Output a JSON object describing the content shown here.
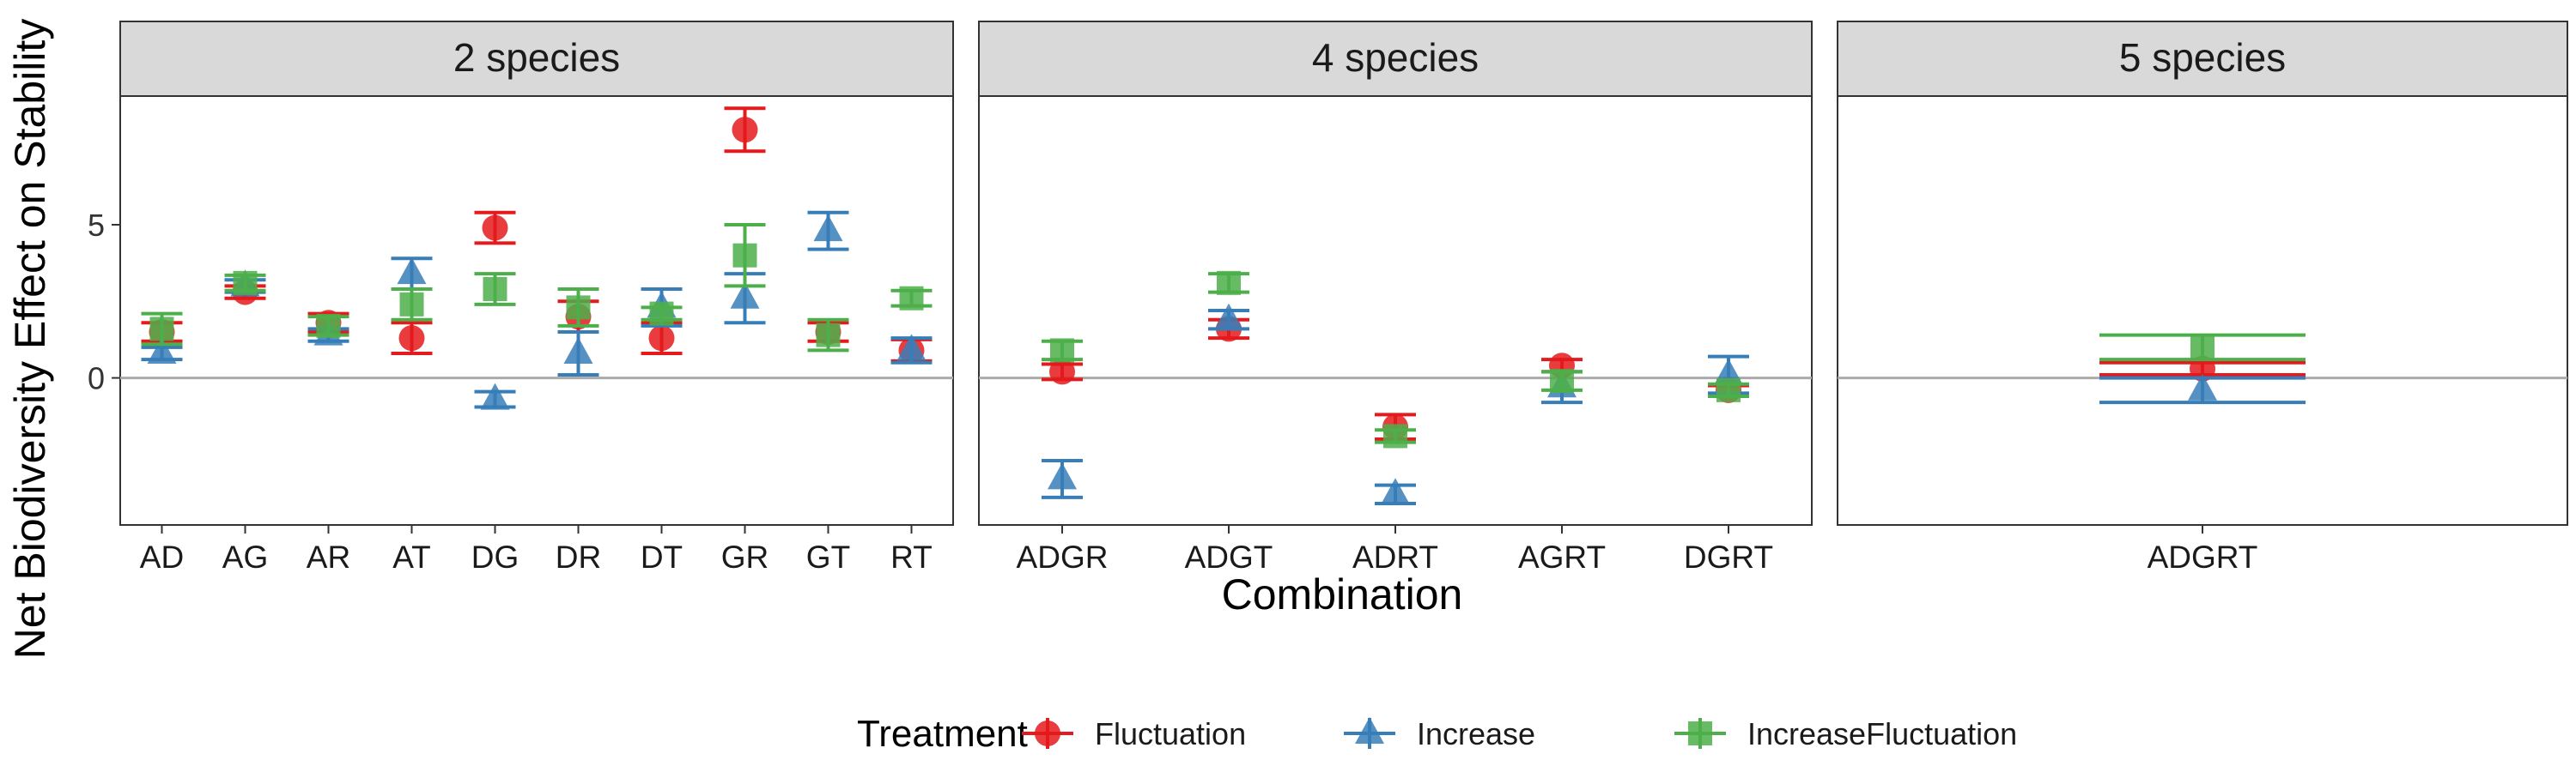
{
  "chart_data": {
    "type": "scatter",
    "ylabel": "Net Biodiversity Effect on Stability",
    "xlabel": "Combination",
    "y_ticks": [
      0,
      5
    ],
    "ylim": [
      -4.8,
      9.2
    ],
    "zero_line": true,
    "legend": {
      "title": "Treatment",
      "position": "bottom",
      "entries": [
        {
          "name": "Fluctuation",
          "color": "#E41A1C",
          "shape": "circle"
        },
        {
          "name": "Increase",
          "color": "#377EB8",
          "shape": "triangle"
        },
        {
          "name": "IncreaseFluctuation",
          "color": "#4DAF4A",
          "shape": "square"
        }
      ]
    },
    "panels": [
      {
        "title": "2 species",
        "categories": [
          "AD",
          "AG",
          "AR",
          "AT",
          "DG",
          "DR",
          "DT",
          "GR",
          "GT",
          "RT"
        ],
        "series": [
          {
            "name": "Fluctuation",
            "values": [
              1.5,
              2.8,
              1.8,
              1.3,
              4.9,
              2.0,
              1.3,
              8.1,
              1.5,
              0.9
            ],
            "errors": [
              0.3,
              0.2,
              0.3,
              0.5,
              0.5,
              0.5,
              0.5,
              0.7,
              0.3,
              0.35
            ]
          },
          {
            "name": "Increase",
            "values": [
              0.8,
              3.0,
              1.4,
              3.4,
              -0.7,
              0.8,
              2.3,
              2.6,
              4.8,
              0.9
            ],
            "errors": [
              0.2,
              0.2,
              0.2,
              0.5,
              0.25,
              0.7,
              0.6,
              0.8,
              0.6,
              0.4
            ]
          },
          {
            "name": "IncreaseFluctuation",
            "values": [
              1.6,
              3.1,
              1.7,
              2.4,
              2.9,
              2.3,
              2.1,
              4.0,
              1.4,
              2.6
            ],
            "errors": [
              0.5,
              0.25,
              0.3,
              0.5,
              0.5,
              0.6,
              0.2,
              1.0,
              0.5,
              0.25
            ]
          }
        ]
      },
      {
        "title": "4 species",
        "categories": [
          "ADGR",
          "ADGT",
          "ADRT",
          "AGRT",
          "DGRT"
        ],
        "series": [
          {
            "name": "Fluctuation",
            "values": [
              0.2,
              1.6,
              -1.6,
              0.4,
              -0.4
            ],
            "errors": [
              0.25,
              0.3,
              0.4,
              0.2,
              0.15
            ]
          },
          {
            "name": "Increase",
            "values": [
              -3.3,
              1.9,
              -3.8,
              -0.3,
              0.1
            ],
            "errors": [
              0.6,
              0.3,
              0.3,
              0.5,
              0.6
            ]
          },
          {
            "name": "IncreaseFluctuation",
            "values": [
              0.9,
              3.1,
              -1.9,
              -0.1,
              -0.4
            ],
            "errors": [
              0.3,
              0.3,
              0.2,
              0.3,
              0.2
            ]
          }
        ]
      },
      {
        "title": "5 species",
        "categories": [
          "ADGRT"
        ],
        "series": [
          {
            "name": "Fluctuation",
            "values": [
              0.3
            ],
            "errors": [
              0.2
            ]
          },
          {
            "name": "Increase",
            "values": [
              -0.4
            ],
            "errors": [
              0.4
            ]
          },
          {
            "name": "IncreaseFluctuation",
            "values": [
              1.0
            ],
            "errors": [
              0.4
            ]
          }
        ]
      }
    ]
  }
}
